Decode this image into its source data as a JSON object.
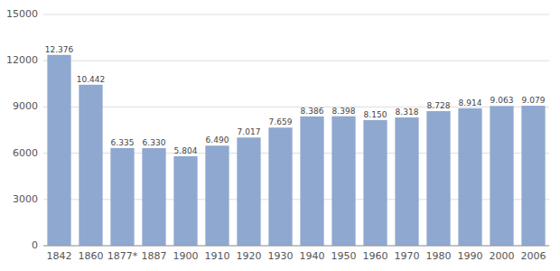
{
  "chart_data": {
    "type": "bar",
    "categories": [
      "1842",
      "1860",
      "1877*",
      "1887",
      "1900",
      "1910",
      "1920",
      "1930",
      "1940",
      "1950",
      "1960",
      "1970",
      "1980",
      "1990",
      "2000",
      "2006"
    ],
    "values": [
      12376,
      10442,
      6335,
      6330,
      5804,
      6490,
      7017,
      7659,
      8386,
      8398,
      8150,
      8318,
      8728,
      8914,
      9063,
      9079
    ],
    "value_labels": [
      "12.376",
      "10.442",
      "6.335",
      "6.330",
      "5.804",
      "6.490",
      "7.017",
      "7.659",
      "8.386",
      "8.398",
      "8.150",
      "8.318",
      "8.728",
      "8.914",
      "9.063",
      "9.079"
    ],
    "data_labels": true,
    "color": "#8fa8d0",
    "ylim": [
      0,
      15000
    ],
    "yticks": [
      0,
      3000,
      6000,
      9000,
      12000,
      15000
    ],
    "grid": true
  }
}
